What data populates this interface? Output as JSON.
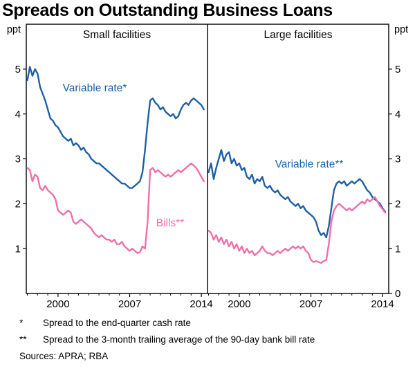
{
  "title": "Spreads on Outstanding Business Loans",
  "y_axis": {
    "unit": "ppt",
    "left_labels": [
      5,
      4,
      3,
      2,
      1
    ],
    "right_labels": [
      5,
      4,
      3,
      2,
      1,
      0
    ]
  },
  "footnotes": [
    {
      "marker": "*",
      "text": "Spread to the end-quarter cash rate"
    },
    {
      "marker": "**",
      "text": "Spread to the 3-month trailing average of the 90-day bank bill rate"
    }
  ],
  "sources": "Sources:  APRA; RBA",
  "chart_data": [
    {
      "type": "line",
      "title": "Small facilities",
      "ylabel": "ppt",
      "ylim": [
        0,
        6
      ],
      "yticks": [
        0,
        1,
        2,
        3,
        4,
        5
      ],
      "xticks": [
        2000,
        2007,
        2014
      ],
      "xlim": [
        1996.9,
        2014.6
      ],
      "x_start": 1997.0,
      "x_step": 0.25,
      "grid": false,
      "series": [
        {
          "name": "Variable rate*",
          "color": "#1d5fa5",
          "values": [
            4.75,
            5.05,
            4.85,
            5.0,
            4.9,
            4.6,
            4.45,
            4.3,
            4.1,
            3.9,
            3.85,
            3.75,
            3.7,
            3.6,
            3.5,
            3.45,
            3.4,
            3.45,
            3.3,
            3.35,
            3.3,
            3.2,
            3.25,
            3.15,
            3.1,
            3.0,
            2.95,
            2.9,
            2.9,
            2.85,
            2.8,
            2.75,
            2.7,
            2.65,
            2.6,
            2.55,
            2.5,
            2.45,
            2.45,
            2.4,
            2.35,
            2.35,
            2.4,
            2.45,
            2.5,
            2.7,
            3.2,
            3.8,
            4.3,
            4.35,
            4.25,
            4.2,
            4.1,
            4.15,
            4.05,
            4.0,
            3.95,
            4.0,
            3.9,
            3.95,
            4.1,
            4.2,
            4.25,
            4.2,
            4.3,
            4.35,
            4.3,
            4.25,
            4.2,
            4.1
          ]
        },
        {
          "name": "Bills**",
          "color": "#ef6fa8",
          "values": [
            2.8,
            2.75,
            2.5,
            2.65,
            2.6,
            2.35,
            2.3,
            2.4,
            2.3,
            2.25,
            2.2,
            2.1,
            1.85,
            1.8,
            1.75,
            1.8,
            1.85,
            1.8,
            1.6,
            1.55,
            1.6,
            1.65,
            1.6,
            1.55,
            1.5,
            1.45,
            1.35,
            1.3,
            1.25,
            1.3,
            1.25,
            1.2,
            1.2,
            1.15,
            1.2,
            1.1,
            1.1,
            1.15,
            1.05,
            1.0,
            0.95,
            1.0,
            0.95,
            0.9,
            0.92,
            1.05,
            1.0,
            1.6,
            2.75,
            2.8,
            2.7,
            2.75,
            2.7,
            2.65,
            2.6,
            2.65,
            2.6,
            2.65,
            2.7,
            2.75,
            2.7,
            2.75,
            2.8,
            2.85,
            2.9,
            2.85,
            2.8,
            2.7,
            2.6,
            2.5
          ]
        }
      ]
    },
    {
      "type": "line",
      "title": "Large facilities",
      "ylabel": "ppt",
      "ylim": [
        0,
        6
      ],
      "yticks": [
        0,
        1,
        2,
        3,
        4,
        5
      ],
      "xticks": [
        2000,
        2007,
        2014
      ],
      "xlim": [
        1996.9,
        2014.6
      ],
      "x_start": 1997.0,
      "x_step": 0.25,
      "grid": false,
      "series": [
        {
          "name": "Variable rate**",
          "color": "#1d5fa5",
          "values": [
            2.7,
            2.9,
            2.55,
            2.8,
            3.0,
            3.2,
            2.95,
            3.1,
            3.15,
            2.9,
            3.0,
            2.85,
            2.9,
            2.75,
            2.8,
            2.6,
            2.55,
            2.65,
            2.45,
            2.55,
            2.5,
            2.6,
            2.4,
            2.35,
            2.4,
            2.3,
            2.25,
            2.3,
            2.2,
            2.15,
            2.1,
            2.15,
            2.05,
            2.0,
            1.95,
            2.0,
            1.9,
            1.95,
            1.85,
            1.8,
            1.75,
            1.7,
            1.6,
            1.4,
            1.3,
            1.35,
            1.25,
            1.5,
            1.9,
            2.3,
            2.45,
            2.5,
            2.45,
            2.5,
            2.4,
            2.45,
            2.5,
            2.45,
            2.5,
            2.55,
            2.5,
            2.4,
            2.3,
            2.25,
            2.15,
            2.1,
            2.05,
            2.0,
            1.9,
            1.82
          ]
        },
        {
          "name": "Bills**",
          "color": "#ef6fa8",
          "values": [
            1.4,
            1.35,
            1.2,
            1.3,
            1.15,
            1.25,
            1.1,
            1.2,
            1.05,
            1.15,
            1.0,
            1.1,
            0.95,
            1.05,
            0.9,
            1.0,
            0.9,
            0.95,
            0.85,
            0.9,
            0.95,
            1.05,
            0.95,
            0.9,
            0.9,
            0.85,
            0.9,
            0.95,
            0.9,
            0.95,
            1.0,
            0.95,
            1.0,
            1.05,
            1.0,
            1.05,
            1.0,
            1.05,
            0.95,
            0.9,
            0.75,
            0.7,
            0.72,
            0.7,
            0.68,
            0.72,
            0.75,
            1.1,
            1.6,
            1.85,
            1.95,
            2.0,
            1.95,
            1.9,
            1.85,
            1.9,
            1.85,
            1.9,
            1.95,
            2.0,
            2.05,
            2.0,
            2.1,
            2.05,
            2.1,
            2.15,
            2.05,
            1.95,
            1.88,
            1.8
          ]
        }
      ]
    }
  ]
}
